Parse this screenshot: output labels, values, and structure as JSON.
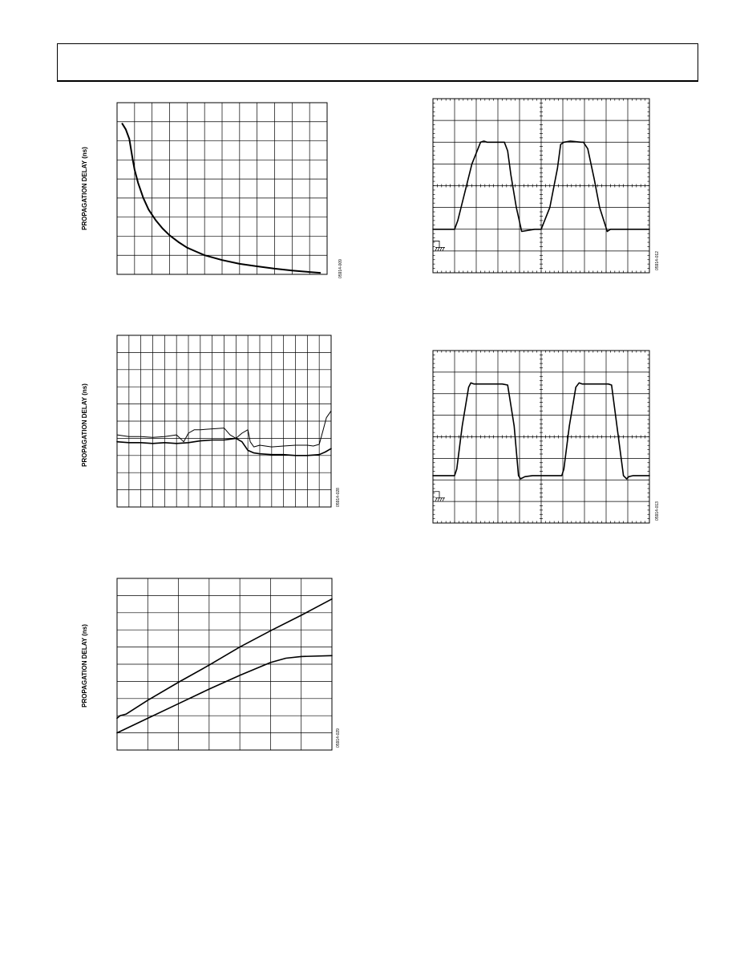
{
  "page": {
    "header": ""
  },
  "chart_data": [
    {
      "id": "fig-prop-delay-decay",
      "type": "line",
      "title": "",
      "xlabel": "",
      "ylabel": "PROPAGATION DELAY (ns)",
      "figure_id": "05914-009",
      "grid": true,
      "xlim": [
        0,
        12
      ],
      "ylim": [
        0,
        9
      ],
      "x_divisions": 12,
      "y_divisions": 9,
      "series": [
        {
          "x": [
            0.3,
            0.5,
            0.7,
            0.9,
            1.0,
            1.2,
            1.5,
            1.8,
            2.2,
            2.6,
            3.0,
            3.5,
            4.0,
            4.5,
            5.0,
            6.0,
            7.0,
            8.0,
            9.0,
            10.0,
            11.0,
            11.6
          ],
          "y": [
            7.9,
            7.6,
            7.1,
            6.0,
            5.5,
            4.8,
            4.0,
            3.4,
            2.85,
            2.4,
            2.05,
            1.7,
            1.4,
            1.2,
            1.0,
            0.75,
            0.55,
            0.42,
            0.3,
            0.2,
            0.12,
            0.08
          ]
        }
      ]
    },
    {
      "id": "fig-prop-delay-noisy",
      "type": "line",
      "title": "",
      "xlabel": "",
      "ylabel": "PROPAGATION DELAY (ns)",
      "figure_id": "05914-028",
      "grid": true,
      "xlim": [
        0,
        18
      ],
      "ylim": [
        0,
        10
      ],
      "x_divisions": 18,
      "y_divisions": 10,
      "series": [
        {
          "x": [
            0,
            1,
            2,
            3,
            4,
            5,
            5.6,
            6,
            6.5,
            7,
            8,
            9,
            9.5,
            10,
            10.5,
            11,
            11.2,
            11.5,
            12,
            13,
            14,
            15,
            16,
            16.5,
            17,
            17.3,
            17.6,
            18
          ],
          "y": [
            4.2,
            4.1,
            4.1,
            4.05,
            4.1,
            4.2,
            3.8,
            4.3,
            4.5,
            4.5,
            4.55,
            4.6,
            4.2,
            4.0,
            4.3,
            4.5,
            3.8,
            3.5,
            3.6,
            3.5,
            3.55,
            3.6,
            3.6,
            3.55,
            3.65,
            4.4,
            5.2,
            5.6
          ]
        },
        {
          "x": [
            0,
            1,
            2,
            3,
            4,
            5,
            6,
            7,
            8,
            9,
            10,
            10.5,
            11,
            11.5,
            12,
            13,
            14,
            15,
            16,
            17,
            17.5,
            18
          ],
          "y": [
            3.8,
            3.75,
            3.75,
            3.7,
            3.75,
            3.7,
            3.75,
            3.85,
            3.9,
            3.9,
            4.0,
            3.8,
            3.3,
            3.15,
            3.1,
            3.05,
            3.05,
            3.0,
            3.0,
            3.05,
            3.2,
            3.4
          ]
        }
      ]
    },
    {
      "id": "fig-prop-delay-linear",
      "type": "line",
      "title": "",
      "xlabel": "",
      "ylabel": "PROPAGATION DELAY (ns)",
      "figure_id": "05914-029",
      "grid": true,
      "xlim": [
        0,
        7
      ],
      "ylim": [
        0,
        10
      ],
      "x_divisions": 7,
      "y_divisions": 10,
      "series": [
        {
          "x": [
            0,
            0.1,
            0.3,
            1.0,
            2.0,
            3.0,
            4.0,
            5.0,
            6.0,
            7.0
          ],
          "y": [
            1.85,
            2.0,
            2.1,
            2.9,
            3.95,
            4.95,
            6.0,
            6.95,
            7.85,
            8.8
          ]
        },
        {
          "x": [
            0,
            1.0,
            2.0,
            3.0,
            4.0,
            5.0,
            5.5,
            6.0,
            7.0
          ],
          "y": [
            1.0,
            1.85,
            2.7,
            3.55,
            4.35,
            5.1,
            5.35,
            5.45,
            5.5
          ]
        }
      ]
    },
    {
      "id": "fig-scope-trapezoid",
      "type": "line",
      "title": "",
      "xlabel": "",
      "ylabel": "",
      "figure_id": "05914-012",
      "grid": true,
      "xlim": [
        0,
        10
      ],
      "ylim": [
        -4,
        4
      ],
      "x_divisions": 10,
      "y_divisions": 8,
      "ground_marker": "ground-icon",
      "series": [
        {
          "x": [
            0,
            1.0,
            1.15,
            1.8,
            2.2,
            2.35,
            2.5,
            2.8,
            3.3,
            3.45,
            3.6,
            3.85,
            4.1,
            4.7,
            4.85,
            5.0,
            5.4,
            5.75,
            5.9,
            6.05,
            6.35,
            6.85,
            6.95,
            7.15,
            7.45,
            7.7,
            8.05,
            8.2,
            8.4,
            9.8,
            10.0
          ],
          "y": [
            -2.0,
            -2.0,
            -1.6,
            1.0,
            2.0,
            2.05,
            2.0,
            2.0,
            2.0,
            1.6,
            0.5,
            -1.0,
            -2.1,
            -2.0,
            -2.0,
            -2.0,
            -1.0,
            0.8,
            1.9,
            2.0,
            2.05,
            2.0,
            2.0,
            1.7,
            0.3,
            -1.0,
            -2.1,
            -2.0,
            -2.0,
            -2.0,
            -2.0
          ]
        }
      ]
    },
    {
      "id": "fig-scope-square",
      "type": "line",
      "title": "",
      "xlabel": "",
      "ylabel": "",
      "figure_id": "05914-013",
      "grid": true,
      "xlim": [
        0,
        10
      ],
      "ylim": [
        -4,
        4
      ],
      "x_divisions": 10,
      "y_divisions": 8,
      "ground_marker": "ground-icon",
      "series": [
        {
          "x": [
            0,
            1.0,
            1.1,
            1.35,
            1.65,
            1.75,
            1.9,
            3.2,
            3.45,
            3.75,
            3.95,
            4.05,
            4.25,
            4.6,
            5.2,
            5.95,
            6.05,
            6.3,
            6.6,
            6.75,
            6.9,
            8.1,
            8.25,
            8.5,
            8.8,
            8.95,
            9.05,
            9.25,
            9.6,
            10.0
          ],
          "y": [
            -1.8,
            -1.8,
            -1.5,
            0.5,
            2.3,
            2.5,
            2.45,
            2.45,
            2.4,
            0.5,
            -1.8,
            -1.95,
            -1.85,
            -1.8,
            -1.8,
            -1.8,
            -1.5,
            0.5,
            2.3,
            2.5,
            2.45,
            2.45,
            2.4,
            0.5,
            -1.8,
            -1.95,
            -1.85,
            -1.8,
            -1.8,
            -1.8
          ]
        }
      ]
    }
  ]
}
